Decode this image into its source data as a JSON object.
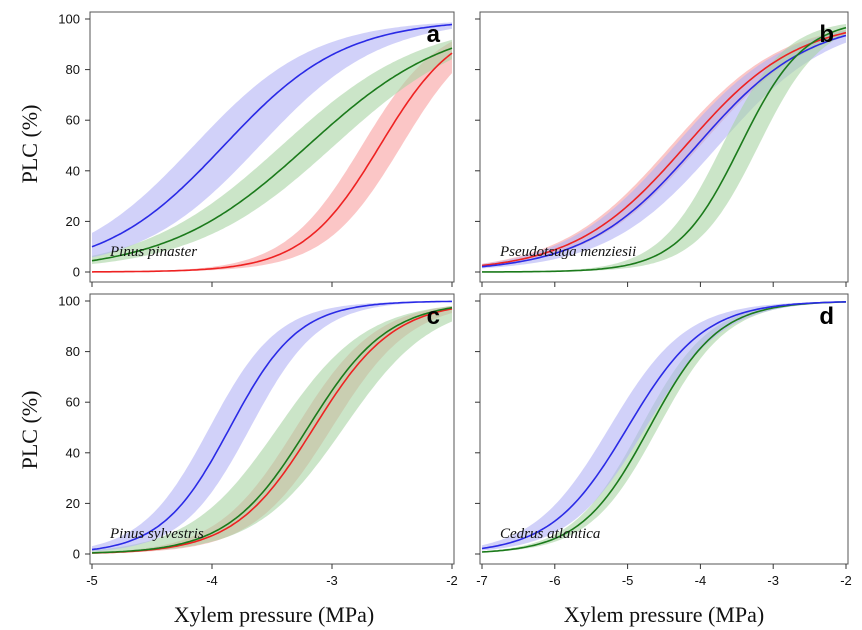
{
  "figure": {
    "xlabel": "Xylem pressure (MPa)",
    "ylabel": "PLC (%)"
  },
  "colors": {
    "red": "#ee2222",
    "green": "#1b7a1b",
    "blue": "#2a2ae6",
    "red_band": "#f8a0a0",
    "green_band": "#a9d3a3",
    "blue_band": "#b3b3f5"
  },
  "chart_data": [
    {
      "type": "line",
      "panel": "a",
      "species": "Pinus pinaster",
      "xlabel": "",
      "ylabel": "PLC (%)",
      "xlim": [
        -5,
        -2
      ],
      "ylim": [
        0,
        100
      ],
      "xticks": [
        -5,
        -4,
        -3,
        -2
      ],
      "xtick_labels": [],
      "yticks": [
        0,
        20,
        40,
        60,
        80,
        100
      ],
      "series": [
        {
          "color": "red",
          "p50": -2.6,
          "slope": 3.1,
          "band_low": {
            "p50": -2.75,
            "slope": 3.1
          },
          "band_high": {
            "p50": -2.42,
            "slope": 3.1
          }
        },
        {
          "color": "green",
          "p50": -3.2,
          "slope": 1.7,
          "band_low": {
            "p50": -3.42,
            "slope": 1.7
          },
          "band_high": {
            "p50": -2.98,
            "slope": 1.7
          }
        },
        {
          "color": "blue",
          "p50": -3.9,
          "slope": 2.0,
          "band_low": {
            "p50": -4.15,
            "slope": 2.0
          },
          "band_high": {
            "p50": -3.6,
            "slope": 2.0
          }
        }
      ]
    },
    {
      "type": "line",
      "panel": "b",
      "species": "Pseudotsuga menziesii",
      "xlabel": "",
      "ylabel": "",
      "xlim": [
        -7,
        -2
      ],
      "ylim": [
        0,
        100
      ],
      "xticks": [
        -7,
        -6,
        -5,
        -4,
        -3,
        -2
      ],
      "xtick_labels": [],
      "yticks": [
        0,
        20,
        40,
        60,
        80,
        100
      ],
      "series": [
        {
          "color": "red",
          "p50": -4.2,
          "slope": 1.3,
          "band_low": {
            "p50": -4.4,
            "slope": 1.3
          },
          "band_high": {
            "p50": -4.0,
            "slope": 1.3
          }
        },
        {
          "color": "blue",
          "p50": -4.05,
          "slope": 1.3,
          "band_low": {
            "p50": -4.35,
            "slope": 1.3
          },
          "band_high": {
            "p50": -3.75,
            "slope": 1.3
          }
        },
        {
          "color": "green",
          "p50": -3.45,
          "slope": 2.3,
          "band_low": {
            "p50": -3.7,
            "slope": 2.3
          },
          "band_high": {
            "p50": -3.2,
            "slope": 2.3
          }
        }
      ]
    },
    {
      "type": "line",
      "panel": "c",
      "species": "Pinus sylvestris",
      "xlabel": "Xylem pressure (MPa)",
      "ylabel": "PLC (%)",
      "xlim": [
        -5,
        -2
      ],
      "ylim": [
        0,
        100
      ],
      "xticks": [
        -5,
        -4,
        -3,
        -2
      ],
      "xtick_labels": [
        "-5",
        "-4",
        "-3",
        "-2"
      ],
      "yticks": [
        0,
        20,
        40,
        60,
        80,
        100
      ],
      "series": [
        {
          "color": "red",
          "p50": -3.15,
          "slope": 3.0,
          "band_low": {
            "p50": -3.3,
            "slope": 3.0
          },
          "band_high": {
            "p50": -3.0,
            "slope": 3.0
          }
        },
        {
          "color": "green",
          "p50": -3.2,
          "slope": 3.0,
          "band_low": {
            "p50": -3.45,
            "slope": 2.7
          },
          "band_high": {
            "p50": -2.9,
            "slope": 2.7
          }
        },
        {
          "color": "blue",
          "p50": -3.85,
          "slope": 3.5,
          "band_low": {
            "p50": -4.02,
            "slope": 3.5
          },
          "band_high": {
            "p50": -3.68,
            "slope": 3.5
          }
        }
      ]
    },
    {
      "type": "line",
      "panel": "d",
      "species": "Cedrus atlantica",
      "xlabel": "Xylem pressure (MPa)",
      "ylabel": "",
      "xlim": [
        -7,
        -2
      ],
      "ylim": [
        0,
        100
      ],
      "xticks": [
        -7,
        -6,
        -5,
        -4,
        -3,
        -2
      ],
      "xtick_labels": [
        "-7",
        "-6",
        "-5",
        "-4",
        "-3",
        "-2"
      ],
      "yticks": [
        0,
        20,
        40,
        60,
        80,
        100
      ],
      "series": [
        {
          "color": "green",
          "p50": -4.7,
          "slope": 2.1,
          "band_low": {
            "p50": -4.82,
            "slope": 2.1
          },
          "band_high": {
            "p50": -4.58,
            "slope": 2.1
          }
        },
        {
          "color": "blue",
          "p50": -5.0,
          "slope": 1.9,
          "band_low": {
            "p50": -5.25,
            "slope": 1.9
          },
          "band_high": {
            "p50": -4.75,
            "slope": 1.9
          }
        }
      ]
    }
  ]
}
